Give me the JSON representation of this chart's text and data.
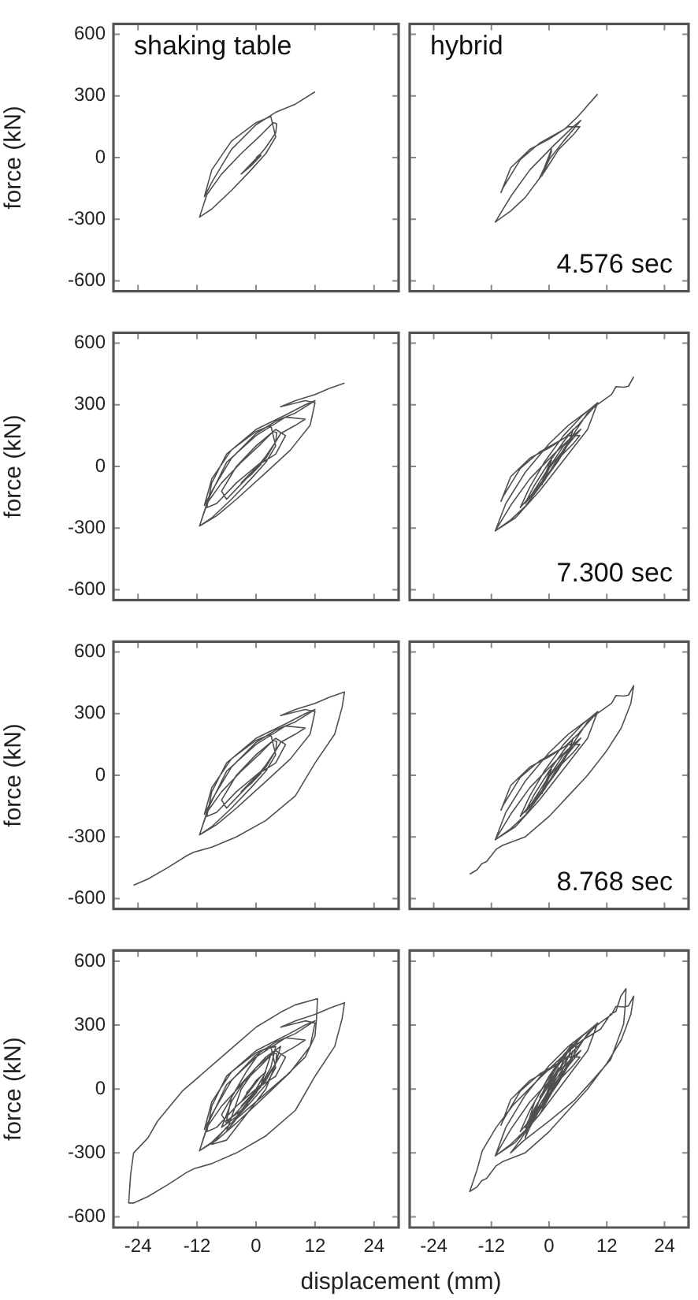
{
  "chart_data": [
    {
      "type": "line",
      "title": "shaking table",
      "ylabel": "force (kN)",
      "color": "#505050",
      "marker": "none",
      "tick_labels": "y",
      "xlim": [
        -29,
        29
      ],
      "ylim": [
        -650,
        650
      ],
      "xticks": [
        -24,
        -12,
        0,
        12,
        24
      ],
      "yticks": [
        -600,
        -300,
        0,
        300,
        600
      ],
      "x": [
        0,
        1,
        -1,
        -3,
        -1,
        1,
        -2,
        0,
        2,
        4,
        4.2,
        3.5,
        1,
        -3,
        -7,
        -10,
        -11.5,
        -9,
        -5,
        -1,
        2,
        4,
        3,
        0,
        -5,
        -9,
        -10.5,
        -9,
        -5,
        0,
        4,
        8,
        12
      ],
      "values": [
        0,
        20,
        -30,
        -80,
        -40,
        10,
        -60,
        -10,
        50,
        120,
        165,
        170,
        110,
        20,
        -80,
        -180,
        -290,
        -250,
        -160,
        -60,
        20,
        100,
        200,
        170,
        80,
        -60,
        -190,
        -120,
        40,
        160,
        220,
        260,
        320
      ]
    },
    {
      "type": "line",
      "title": "hybrid",
      "annotations": [
        "4.576 sec"
      ],
      "color": "#505050",
      "marker": "none",
      "tick_labels": false,
      "xlim": [
        -29,
        29
      ],
      "ylim": [
        -650,
        650
      ],
      "xticks": [
        -24,
        -12,
        0,
        12,
        24
      ],
      "yticks": [
        -600,
        -300,
        0,
        300,
        600
      ],
      "x": [
        0,
        0.5,
        -1,
        -2,
        -1,
        0.5,
        -0.5,
        -1.5,
        0,
        3,
        6.6,
        5,
        1,
        -4,
        -8,
        -11.2,
        -8,
        -5,
        -1,
        2,
        5,
        6.4,
        4,
        0,
        -4,
        -8,
        -10,
        -9.6,
        -6,
        -2,
        3.2,
        6,
        10.1
      ],
      "values": [
        0,
        40,
        -50,
        -100,
        -60,
        30,
        -20,
        -90,
        -10,
        80,
        181,
        150,
        60,
        -60,
        -190,
        -314,
        -260,
        -195,
        -70,
        40,
        110,
        150,
        150,
        90,
        40,
        -50,
        -170,
        -148,
        -10,
        70,
        138,
        200,
        309
      ]
    },
    {
      "type": "line",
      "ylabel": "force (kN)",
      "color": "#505050",
      "marker": "none",
      "tick_labels": "y",
      "xlim": [
        -29,
        29
      ],
      "ylim": [
        -650,
        650
      ],
      "xticks": [
        -24,
        -12,
        0,
        12,
        24
      ],
      "yticks": [
        -600,
        -300,
        0,
        300,
        600
      ],
      "x": [
        0,
        1,
        -1,
        -3,
        -1,
        1,
        -2,
        0,
        2,
        4,
        4.2,
        3.5,
        1,
        -3,
        -7,
        -10,
        -11.5,
        -9,
        -5,
        -1,
        2,
        4,
        3,
        0,
        -5,
        -9,
        -10.5,
        -9,
        -5,
        0,
        4,
        8,
        12,
        10,
        6,
        0,
        -6,
        -9,
        -10,
        -8,
        -4,
        0,
        4,
        6,
        4,
        0,
        -4,
        -7,
        -6,
        -2,
        2,
        5,
        8,
        10,
        6,
        0,
        -6,
        -9.5,
        -11.5,
        -8,
        -4,
        2,
        7,
        11,
        12,
        10,
        5,
        8,
        12,
        15,
        18
      ],
      "values": [
        0,
        20,
        -30,
        -80,
        -40,
        10,
        -60,
        -10,
        50,
        120,
        165,
        170,
        110,
        20,
        -80,
        -180,
        -290,
        -250,
        -160,
        -60,
        20,
        100,
        200,
        170,
        80,
        -60,
        -190,
        -120,
        40,
        160,
        220,
        260,
        320,
        300,
        250,
        180,
        60,
        -80,
        -200,
        -180,
        -80,
        0,
        60,
        150,
        180,
        100,
        0,
        -120,
        -160,
        -60,
        40,
        160,
        200,
        230,
        240,
        150,
        20,
        -150,
        -290,
        -240,
        -160,
        -30,
        80,
        200,
        310,
        320,
        290,
        320,
        350,
        380,
        405
      ]
    },
    {
      "type": "line",
      "annotations": [
        "7.300 sec"
      ],
      "color": "#505050",
      "marker": "none",
      "tick_labels": false,
      "xlim": [
        -29,
        29
      ],
      "ylim": [
        -650,
        650
      ],
      "xticks": [
        -24,
        -12,
        0,
        12,
        24
      ],
      "yticks": [
        -600,
        -300,
        0,
        300,
        600
      ],
      "x": [
        0,
        0.5,
        -1,
        -2,
        -1,
        0.5,
        -0.5,
        -1.5,
        0,
        3,
        6.6,
        5,
        1,
        -4,
        -8,
        -11.2,
        -8,
        -5,
        -1,
        2,
        5,
        6.4,
        4,
        0,
        -4,
        -8,
        -10,
        -9.6,
        -6,
        -2,
        3.2,
        6,
        10.1,
        8,
        4,
        0,
        -5,
        -9,
        -11.2,
        -7,
        -2,
        3,
        8,
        10.1,
        7,
        3,
        -1,
        -4,
        -6,
        -3,
        1,
        4,
        5,
        3,
        0,
        -3,
        -5,
        -2,
        2,
        5,
        3,
        -1,
        -4,
        0,
        4,
        8,
        10,
        11,
        13,
        13.9,
        15.5,
        16.5,
        17.6
      ],
      "values": [
        0,
        40,
        -50,
        -100,
        -60,
        30,
        -20,
        -90,
        -10,
        80,
        181,
        150,
        60,
        -60,
        -190,
        -314,
        -260,
        -195,
        -70,
        40,
        110,
        150,
        150,
        90,
        40,
        -50,
        -170,
        -148,
        -10,
        70,
        138,
        200,
        309,
        270,
        200,
        110,
        -30,
        -180,
        -314,
        -250,
        -120,
        30,
        180,
        310,
        250,
        150,
        20,
        -100,
        -200,
        -120,
        0,
        110,
        180,
        120,
        20,
        -90,
        -180,
        -100,
        30,
        150,
        100,
        -40,
        -150,
        -30,
        120,
        260,
        300,
        317,
        350,
        388,
        385,
        390,
        436
      ]
    },
    {
      "type": "line",
      "ylabel": "force (kN)",
      "color": "#505050",
      "marker": "none",
      "tick_labels": "y",
      "xlim": [
        -29,
        29
      ],
      "ylim": [
        -650,
        650
      ],
      "xticks": [
        -24,
        -12,
        0,
        12,
        24
      ],
      "yticks": [
        -600,
        -300,
        0,
        300,
        600
      ],
      "x": [
        0,
        1,
        -1,
        -3,
        -1,
        1,
        -2,
        0,
        2,
        4,
        4.2,
        3.5,
        1,
        -3,
        -7,
        -10,
        -11.5,
        -9,
        -5,
        -1,
        2,
        4,
        3,
        0,
        -5,
        -9,
        -10.5,
        -9,
        -5,
        0,
        4,
        8,
        12,
        10,
        6,
        0,
        -6,
        -9,
        -10,
        -8,
        -4,
        0,
        4,
        6,
        4,
        0,
        -4,
        -7,
        -6,
        -2,
        2,
        5,
        8,
        10,
        6,
        0,
        -6,
        -9.5,
        -11.5,
        -8,
        -4,
        2,
        7,
        11,
        12,
        10,
        5,
        8,
        12,
        15,
        18,
        17.5,
        16,
        12,
        8,
        2,
        -4,
        -9,
        -12.6,
        -14,
        -18,
        -22,
        -24.9
      ],
      "values": [
        0,
        20,
        -30,
        -80,
        -40,
        10,
        -60,
        -10,
        50,
        120,
        165,
        170,
        110,
        20,
        -80,
        -180,
        -290,
        -250,
        -160,
        -60,
        20,
        100,
        200,
        170,
        80,
        -60,
        -190,
        -120,
        40,
        160,
        220,
        260,
        320,
        300,
        250,
        180,
        60,
        -80,
        -200,
        -180,
        -80,
        0,
        60,
        150,
        180,
        100,
        0,
        -120,
        -160,
        -60,
        40,
        160,
        200,
        230,
        240,
        150,
        20,
        -150,
        -290,
        -240,
        -160,
        -30,
        80,
        200,
        310,
        320,
        290,
        320,
        350,
        380,
        405,
        330,
        200,
        60,
        -100,
        -220,
        -300,
        -350,
        -374,
        -390,
        -450,
        -505,
        -535
      ]
    },
    {
      "type": "line",
      "annotations": [
        "8.768 sec"
      ],
      "color": "#505050",
      "marker": "none",
      "tick_labels": false,
      "xlim": [
        -29,
        29
      ],
      "ylim": [
        -650,
        650
      ],
      "xticks": [
        -24,
        -12,
        0,
        12,
        24
      ],
      "yticks": [
        -600,
        -300,
        0,
        300,
        600
      ],
      "x": [
        0,
        0.5,
        -1,
        -2,
        -1,
        0.5,
        -0.5,
        -1.5,
        0,
        3,
        6.6,
        5,
        1,
        -4,
        -8,
        -11.2,
        -8,
        -5,
        -1,
        2,
        5,
        6.4,
        4,
        0,
        -4,
        -8,
        -10,
        -9.6,
        -6,
        -2,
        3.2,
        6,
        10.1,
        8,
        4,
        0,
        -5,
        -9,
        -11.2,
        -7,
        -2,
        3,
        8,
        10.1,
        7,
        3,
        -1,
        -4,
        -6,
        -3,
        1,
        4,
        5,
        3,
        0,
        -3,
        -5,
        -2,
        2,
        5,
        3,
        -1,
        -4,
        0,
        4,
        8,
        10,
        11,
        13,
        13.9,
        15.5,
        16.5,
        17.6,
        17,
        15,
        12,
        8,
        4,
        0,
        -5,
        -9.6,
        -11,
        -13,
        -14,
        -15,
        -16.5
      ],
      "values": [
        0,
        40,
        -50,
        -100,
        -60,
        30,
        -20,
        -90,
        -10,
        80,
        181,
        150,
        60,
        -60,
        -190,
        -314,
        -260,
        -195,
        -70,
        40,
        110,
        150,
        150,
        90,
        40,
        -50,
        -170,
        -148,
        -10,
        70,
        138,
        200,
        309,
        270,
        200,
        110,
        -30,
        -180,
        -314,
        -250,
        -120,
        30,
        180,
        310,
        250,
        150,
        20,
        -100,
        -200,
        -120,
        0,
        110,
        180,
        120,
        20,
        -90,
        -180,
        -100,
        30,
        150,
        100,
        -40,
        -150,
        -30,
        120,
        260,
        300,
        317,
        350,
        388,
        385,
        390,
        436,
        350,
        230,
        120,
        0,
        -100,
        -200,
        -300,
        -340,
        -360,
        -420,
        -430,
        -460,
        -481
      ]
    },
    {
      "type": "line",
      "ylabel": "force (kN)",
      "xlabel": "displacement (mm)",
      "color": "#505050",
      "marker": "none",
      "xlim": [
        -29,
        29
      ],
      "ylim": [
        -650,
        650
      ],
      "xticks": [
        -24,
        -12,
        0,
        12,
        24
      ],
      "yticks": [
        -600,
        -300,
        0,
        300,
        600
      ],
      "x": [
        0,
        1,
        -1,
        -3,
        -1,
        1,
        -2,
        0,
        2,
        4,
        4.2,
        3.5,
        1,
        -3,
        -7,
        -10,
        -11.5,
        -9,
        -5,
        -1,
        2,
        4,
        3,
        0,
        -5,
        -9,
        -10.5,
        -9,
        -5,
        0,
        4,
        8,
        12,
        10,
        6,
        0,
        -6,
        -9,
        -10,
        -8,
        -4,
        0,
        4,
        6,
        4,
        0,
        -4,
        -7,
        -6,
        -2,
        2,
        5,
        8,
        10,
        6,
        0,
        -6,
        -9.5,
        -11.5,
        -8,
        -4,
        2,
        7,
        11,
        12,
        10,
        5,
        8,
        12,
        15,
        18,
        17.5,
        16,
        12,
        8,
        2,
        -4,
        -9,
        -12.6,
        -14,
        -18,
        -22,
        -24.9,
        -25.9,
        -25.5,
        -24.9,
        -22,
        -20,
        -15,
        -9,
        -4,
        0,
        5,
        8,
        12.5,
        12.3,
        12,
        10,
        6,
        0,
        -6,
        -9,
        -6,
        -2,
        2,
        4,
        5,
        2,
        -2,
        -5,
        -7,
        -4,
        0,
        3,
        4,
        1,
        -2,
        -5,
        -6,
        -3,
        1,
        3,
        0,
        -3,
        -6,
        -2,
        2,
        0,
        -3,
        -1,
        1,
        -2
      ],
      "values": [
        0,
        20,
        -30,
        -80,
        -40,
        10,
        -60,
        -10,
        50,
        120,
        165,
        170,
        110,
        20,
        -80,
        -180,
        -290,
        -250,
        -160,
        -60,
        20,
        100,
        200,
        170,
        80,
        -60,
        -190,
        -120,
        40,
        160,
        220,
        260,
        320,
        300,
        250,
        180,
        60,
        -80,
        -200,
        -180,
        -80,
        0,
        60,
        150,
        180,
        100,
        0,
        -120,
        -160,
        -60,
        40,
        160,
        200,
        230,
        240,
        150,
        20,
        -150,
        -290,
        -240,
        -160,
        -30,
        80,
        200,
        310,
        320,
        290,
        320,
        350,
        380,
        405,
        330,
        200,
        60,
        -100,
        -220,
        -300,
        -350,
        -374,
        -390,
        -450,
        -505,
        -535,
        -535,
        -400,
        -300,
        -230,
        -150,
        -10,
        110,
        210,
        290,
        360,
        395,
        424,
        330,
        250,
        150,
        60,
        -60,
        -180,
        -260,
        -240,
        -120,
        0,
        120,
        200,
        150,
        50,
        -60,
        -180,
        -130,
        -20,
        100,
        200,
        180,
        80,
        -40,
        -150,
        -100,
        20,
        160,
        100,
        0,
        -200,
        -80,
        80,
        40,
        -60,
        0,
        60,
        -20
      ]
    },
    {
      "type": "line",
      "color": "#505050",
      "marker": "none",
      "tick_labels": "x",
      "xlim": [
        -29,
        29
      ],
      "ylim": [
        -650,
        650
      ],
      "xticks": [
        -24,
        -12,
        0,
        12,
        24
      ],
      "yticks": [
        -600,
        -300,
        0,
        300,
        600
      ],
      "x": [
        0,
        0.5,
        -1,
        -2,
        -1,
        0.5,
        -0.5,
        -1.5,
        0,
        3,
        6.6,
        5,
        1,
        -4,
        -8,
        -11.2,
        -8,
        -5,
        -1,
        2,
        5,
        6.4,
        4,
        0,
        -4,
        -8,
        -10,
        -9.6,
        -6,
        -2,
        3.2,
        6,
        10.1,
        8,
        4,
        0,
        -5,
        -9,
        -11.2,
        -7,
        -2,
        3,
        8,
        10.1,
        7,
        3,
        -1,
        -4,
        -6,
        -3,
        1,
        4,
        5,
        3,
        0,
        -3,
        -5,
        -2,
        2,
        5,
        3,
        -1,
        -4,
        0,
        4,
        8,
        10,
        11,
        13,
        13.9,
        15.5,
        16.5,
        17.6,
        17,
        15,
        12,
        8,
        4,
        0,
        -5,
        -9.6,
        -11,
        -13,
        -14,
        -15,
        -16.5,
        -15,
        -13.9,
        -11,
        -7.5,
        -2,
        3.2,
        7,
        10.7,
        12.8,
        13.9,
        14.9,
        16,
        15.8,
        15.5,
        12.8,
        9,
        5.3,
        0,
        -5.3,
        -8,
        -6,
        -2,
        2,
        5,
        6,
        3,
        0,
        -3,
        -5,
        -2,
        1,
        4,
        5,
        2,
        -1,
        -4,
        -5,
        -2,
        1,
        4,
        1,
        -2,
        -4,
        -1,
        2,
        0,
        -2
      ],
      "values": [
        0,
        40,
        -50,
        -100,
        -60,
        30,
        -20,
        -90,
        -10,
        80,
        181,
        150,
        60,
        -60,
        -190,
        -314,
        -260,
        -195,
        -70,
        40,
        110,
        150,
        150,
        90,
        40,
        -50,
        -170,
        -148,
        -10,
        70,
        138,
        200,
        309,
        270,
        200,
        110,
        -30,
        -180,
        -314,
        -250,
        -120,
        30,
        180,
        310,
        250,
        150,
        20,
        -100,
        -200,
        -120,
        0,
        110,
        180,
        120,
        20,
        -90,
        -180,
        -100,
        30,
        150,
        100,
        -40,
        -150,
        -30,
        120,
        260,
        300,
        317,
        350,
        388,
        385,
        390,
        436,
        350,
        230,
        120,
        0,
        -100,
        -200,
        -300,
        -340,
        -360,
        -420,
        -430,
        -460,
        -481,
        -380,
        -290,
        -180,
        -76,
        50,
        162,
        230,
        281,
        352,
        364,
        435,
        471,
        380,
        305,
        138,
        40,
        -52,
        -150,
        -243,
        -300,
        -240,
        -100,
        50,
        150,
        230,
        160,
        60,
        -60,
        -200,
        -120,
        0,
        150,
        220,
        120,
        0,
        -150,
        -230,
        -80,
        40,
        180,
        80,
        -50,
        -180,
        -60,
        100,
        30,
        -40
      ]
    }
  ]
}
